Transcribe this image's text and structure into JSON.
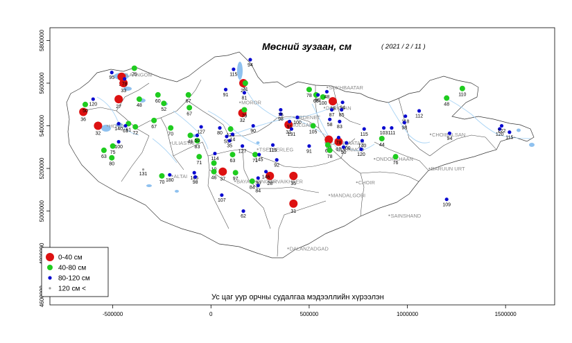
{
  "title": "Мөсний зузаан, см",
  "date": "( 2021 / 2 / 11 )",
  "credit": "Ус цаг уур орчны судалгаа мэдээллийн хүрээлэн",
  "x_ticks": [
    "-500000",
    "0",
    "500000",
    "1000000",
    "1500000"
  ],
  "y_ticks": [
    "4600000",
    "4800000",
    "5000000",
    "5200000",
    "5400000",
    "5600000",
    "5800000"
  ],
  "legend": [
    {
      "label": "0-40 см",
      "color": "#dd1111"
    },
    {
      "label": "40-80 см",
      "color": "#1fcc1f"
    },
    {
      "label": "80-120 см",
      "color": "#0a0ad0"
    },
    {
      "label": "120 см <",
      "color": "#9a9a9a"
    }
  ],
  "cities": [
    {
      "name": "ULAANGOM",
      "x": -450000,
      "y": 5640000
    },
    {
      "name": "HOVD",
      "x": -520000,
      "y": 5400000
    },
    {
      "name": "ULIASTAI",
      "x": -200000,
      "y": 5320000
    },
    {
      "name": "ALTAI",
      "x": -190000,
      "y": 5165000
    },
    {
      "name": "MOROR",
      "x": 155000,
      "y": 5510000
    },
    {
      "name": "TSETSERLEG",
      "x": 245000,
      "y": 5290000
    },
    {
      "name": "BAYANHONGOR",
      "x": 130000,
      "y": 5140000
    },
    {
      "name": "ARVAIKHEER",
      "x": 300000,
      "y": 5140000
    },
    {
      "name": "ERDENET",
      "x": 430000,
      "y": 5440000
    },
    {
      "name": "BULGAN",
      "x": 410000,
      "y": 5405000
    },
    {
      "name": "SUKHBAATAR",
      "x": 600000,
      "y": 5580000
    },
    {
      "name": "DARKHAN",
      "x": 585000,
      "y": 5485000
    },
    {
      "name": "ULAANBAATAR",
      "x": 590000,
      "y": 5320000
    },
    {
      "name": "ZUUNMOD",
      "x": 645000,
      "y": 5290000
    },
    {
      "name": "ONDORKHAAN",
      "x": 840000,
      "y": 5245000
    },
    {
      "name": "CHOIBALSAN",
      "x": 1125000,
      "y": 5360000
    },
    {
      "name": "CHOIR",
      "x": 750000,
      "y": 5135000
    },
    {
      "name": "MANDALGOBI",
      "x": 610000,
      "y": 5075000
    },
    {
      "name": "BARUUN URT",
      "x": 1120000,
      "y": 5200000
    },
    {
      "name": "SAINSHAND",
      "x": 915000,
      "y": 4980000
    },
    {
      "name": "DALANZADGAD",
      "x": 400000,
      "y": 4825000
    }
  ],
  "chart_data": {
    "type": "scatter",
    "title": "Мөсний зузаан, см",
    "xlim": [
      -820000,
      1750000
    ],
    "ylim": [
      4560000,
      5860000
    ],
    "x_ticks": [
      -500000,
      0,
      500000,
      1000000,
      1500000
    ],
    "y_ticks": [
      4600000,
      4800000,
      5000000,
      5200000,
      5400000,
      5600000,
      5800000
    ],
    "legend_position": "bottom-left",
    "series": [
      {
        "name": "0-40 см",
        "color": "#dd1111",
        "points": [
          {
            "x": -455000,
            "y": 5630000,
            "v": "33"
          },
          {
            "x": -445000,
            "y": 5600000,
            "v": "33"
          },
          {
            "x": -470000,
            "y": 5525000,
            "v": "27"
          },
          {
            "x": -650000,
            "y": 5465000,
            "v": "36"
          },
          {
            "x": -575000,
            "y": 5400000,
            "v": "32"
          },
          {
            "x": 165000,
            "y": 5600000,
            "v": "27"
          },
          {
            "x": 160000,
            "y": 5460000,
            "v": "32"
          },
          {
            "x": 395000,
            "y": 5405000,
            "v": "31"
          },
          {
            "x": 620000,
            "y": 5515000,
            "v": "38"
          },
          {
            "x": 600000,
            "y": 5335000,
            "v": "38"
          },
          {
            "x": 650000,
            "y": 5325000,
            "v": "10"
          },
          {
            "x": 60000,
            "y": 5185000,
            "v": "37"
          },
          {
            "x": 300000,
            "y": 5165000,
            "v": "28"
          },
          {
            "x": 420000,
            "y": 5165000,
            "v": "35"
          },
          {
            "x": 420000,
            "y": 5035000,
            "v": "31"
          }
        ]
      },
      {
        "name": "40-80 см",
        "color": "#1fcc1f",
        "points": [
          {
            "x": -390000,
            "y": 5670000,
            "v": "75"
          },
          {
            "x": -365000,
            "y": 5525000,
            "v": "48"
          },
          {
            "x": -270000,
            "y": 5545000,
            "v": "60"
          },
          {
            "x": -240000,
            "y": 5505000,
            "v": "52"
          },
          {
            "x": -640000,
            "y": 5500000,
            "v": "50"
          },
          {
            "x": -420000,
            "y": 5410000,
            "v": "61"
          },
          {
            "x": -385000,
            "y": 5395000,
            "v": "72"
          },
          {
            "x": -290000,
            "y": 5425000,
            "v": "67"
          },
          {
            "x": -545000,
            "y": 5285000,
            "v": "63"
          },
          {
            "x": -500000,
            "y": 5305000,
            "v": "75"
          },
          {
            "x": -505000,
            "y": 5250000,
            "v": "80"
          },
          {
            "x": -115000,
            "y": 5545000,
            "v": "67"
          },
          {
            "x": -110000,
            "y": 5485000,
            "v": "67"
          },
          {
            "x": -205000,
            "y": 5390000,
            "v": "70"
          },
          {
            "x": -105000,
            "y": 5355000,
            "v": "46"
          },
          {
            "x": -70000,
            "y": 5330000,
            "v": "83"
          },
          {
            "x": -60000,
            "y": 5255000,
            "v": "71"
          },
          {
            "x": -250000,
            "y": 5165000,
            "v": "70"
          },
          {
            "x": 15000,
            "y": 5225000,
            "v": "10"
          },
          {
            "x": 15000,
            "y": 5185000,
            "v": "46"
          },
          {
            "x": 100000,
            "y": 5385000,
            "v": "120"
          },
          {
            "x": 110000,
            "y": 5265000,
            "v": "63"
          },
          {
            "x": 125000,
            "y": 5180000,
            "v": "97"
          },
          {
            "x": 210000,
            "y": 5140000,
            "v": "84"
          },
          {
            "x": 225000,
            "y": 5265000,
            "v": "71"
          },
          {
            "x": 175000,
            "y": 5600000,
            "v": "71"
          },
          {
            "x": 170000,
            "y": 5475000,
            "v": "79"
          },
          {
            "x": 500000,
            "y": 5570000,
            "v": "78"
          },
          {
            "x": 535000,
            "y": 5545000,
            "v": "65"
          },
          {
            "x": 570000,
            "y": 5535000,
            "v": "100"
          },
          {
            "x": 520000,
            "y": 5400000,
            "v": "105"
          },
          {
            "x": 595000,
            "y": 5310000,
            "v": "61"
          },
          {
            "x": 605000,
            "y": 5285000,
            "v": "78"
          },
          {
            "x": 870000,
            "y": 5340000,
            "v": "44"
          },
          {
            "x": 940000,
            "y": 5255000,
            "v": "76"
          },
          {
            "x": 1200000,
            "y": 5530000,
            "v": "48"
          },
          {
            "x": 1280000,
            "y": 5575000,
            "v": "110"
          }
        ]
      },
      {
        "name": "80-120 см",
        "color": "#0a0ad0",
        "points": [
          {
            "x": -505000,
            "y": 5650000,
            "v": "95"
          },
          {
            "x": -440000,
            "y": 5620000,
            "v": "78"
          },
          {
            "x": -600000,
            "y": 5525000,
            "v": "120"
          },
          {
            "x": -470000,
            "y": 5410000,
            "v": "140"
          },
          {
            "x": -470000,
            "y": 5325000,
            "v": "100"
          },
          {
            "x": -435000,
            "y": 5400000,
            "v": "61"
          },
          {
            "x": -50000,
            "y": 5395000,
            "v": "127"
          },
          {
            "x": -70000,
            "y": 5355000,
            "v": "50"
          },
          {
            "x": -85000,
            "y": 5180000,
            "v": "165"
          },
          {
            "x": -80000,
            "y": 5160000,
            "v": "98"
          },
          {
            "x": -210000,
            "y": 5170000,
            "v": "180"
          },
          {
            "x": 20000,
            "y": 5270000,
            "v": "114"
          },
          {
            "x": 45000,
            "y": 5390000,
            "v": "80"
          },
          {
            "x": 80000,
            "y": 5350000,
            "v": "55"
          },
          {
            "x": 95000,
            "y": 5330000,
            "v": "35"
          },
          {
            "x": 110000,
            "y": 5360000,
            "v": "14"
          },
          {
            "x": 160000,
            "y": 5305000,
            "v": "127"
          },
          {
            "x": 55000,
            "y": 5075000,
            "v": "107"
          },
          {
            "x": 165000,
            "y": 5000000,
            "v": "62"
          },
          {
            "x": 115000,
            "y": 5665000,
            "v": "115"
          },
          {
            "x": 200000,
            "y": 5710000,
            "v": "94"
          },
          {
            "x": 75000,
            "y": 5570000,
            "v": "91"
          },
          {
            "x": 170000,
            "y": 5555000,
            "v": "81"
          },
          {
            "x": 215000,
            "y": 5400000,
            "v": "90"
          },
          {
            "x": 315000,
            "y": 5310000,
            "v": "115"
          },
          {
            "x": 335000,
            "y": 5240000,
            "v": "92"
          },
          {
            "x": 280000,
            "y": 5185000,
            "v": "146"
          },
          {
            "x": 240000,
            "y": 5155000,
            "v": "30"
          },
          {
            "x": 240000,
            "y": 5120000,
            "v": "84"
          },
          {
            "x": 245000,
            "y": 5265000,
            "v": "145"
          },
          {
            "x": 355000,
            "y": 5455000,
            "v": "98"
          },
          {
            "x": 355000,
            "y": 5475000,
            "v": "75"
          },
          {
            "x": 400000,
            "y": 5420000,
            "v": "91"
          },
          {
            "x": 440000,
            "y": 5440000,
            "v": "100"
          },
          {
            "x": 410000,
            "y": 5385000,
            "v": "131"
          },
          {
            "x": 500000,
            "y": 5305000,
            "v": "91"
          },
          {
            "x": 545000,
            "y": 5545000,
            "v": "99"
          },
          {
            "x": 590000,
            "y": 5560000,
            "v": "48"
          },
          {
            "x": 615000,
            "y": 5475000,
            "v": "87"
          },
          {
            "x": 605000,
            "y": 5430000,
            "v": "58"
          },
          {
            "x": 670000,
            "y": 5510000,
            "v": "94"
          },
          {
            "x": 665000,
            "y": 5475000,
            "v": "85"
          },
          {
            "x": 655000,
            "y": 5420000,
            "v": "83"
          },
          {
            "x": 650000,
            "y": 5345000,
            "v": "78"
          },
          {
            "x": 690000,
            "y": 5320000,
            "v": "100"
          },
          {
            "x": 675000,
            "y": 5300000,
            "v": "50"
          },
          {
            "x": 780000,
            "y": 5385000,
            "v": "115"
          },
          {
            "x": 770000,
            "y": 5330000,
            "v": "140"
          },
          {
            "x": 765000,
            "y": 5290000,
            "v": "120"
          },
          {
            "x": 880000,
            "y": 5390000,
            "v": "103"
          },
          {
            "x": 920000,
            "y": 5390000,
            "v": "111"
          },
          {
            "x": 990000,
            "y": 5445000,
            "v": "118"
          },
          {
            "x": 985000,
            "y": 5415000,
            "v": "98"
          },
          {
            "x": 1060000,
            "y": 5470000,
            "v": "112"
          },
          {
            "x": 1215000,
            "y": 5365000,
            "v": "94"
          },
          {
            "x": 1470000,
            "y": 5385000,
            "v": "120"
          },
          {
            "x": 1480000,
            "y": 5400000,
            "v": "122"
          },
          {
            "x": 1520000,
            "y": 5370000,
            "v": "115"
          },
          {
            "x": 1200000,
            "y": 5055000,
            "v": "109"
          }
        ]
      },
      {
        "name": "120 см <",
        "color": "#9a9a9a",
        "points": [
          {
            "x": -345000,
            "y": 5195000,
            "v": "131"
          }
        ]
      }
    ]
  }
}
